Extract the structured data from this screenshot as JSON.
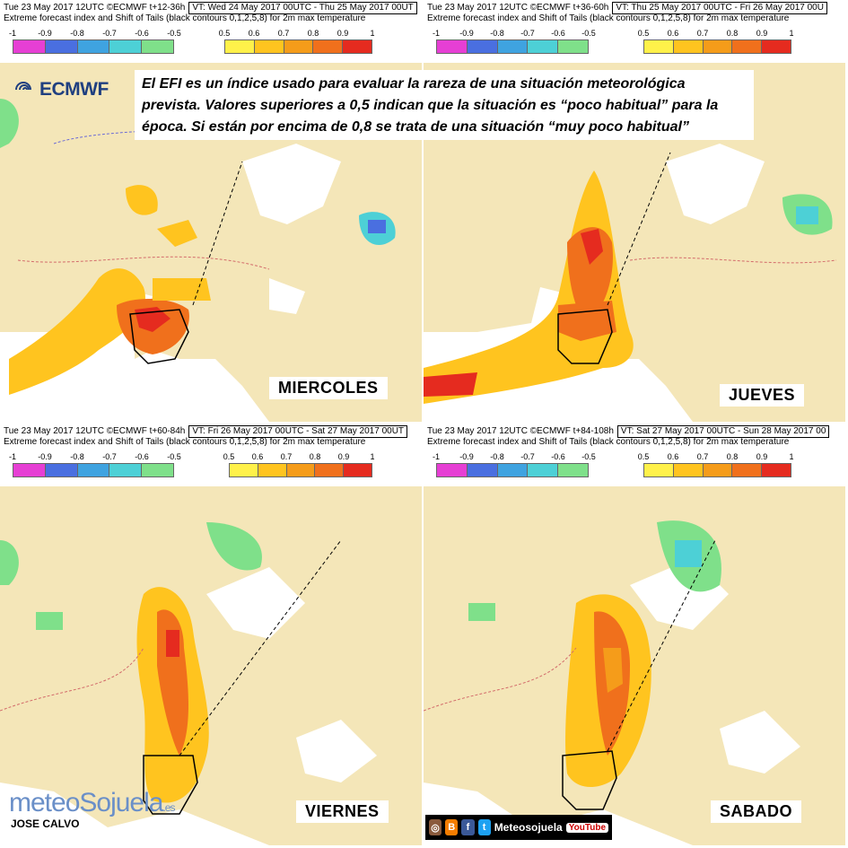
{
  "legend": {
    "neg_labels": [
      "-1",
      "-0.9",
      "-0.8",
      "-0.7",
      "-0.6",
      "-0.5"
    ],
    "neg_colors": [
      "#e63fd4",
      "#4a6fe0",
      "#3fa3e0",
      "#4dd0d6",
      "#7fe08a"
    ],
    "pos_labels": [
      "0.5",
      "0.6",
      "0.7",
      "0.8",
      "0.9",
      "1"
    ],
    "pos_colors": [
      "#fff14a",
      "#ffc41f",
      "#f59c1a",
      "#f0701c",
      "#e52b1f"
    ]
  },
  "panels": [
    {
      "header_run": "Tue 23 May 2017 12UTC ©ECMWF t+12-36h",
      "valid_time": "VT: Wed 24 May 2017 00UTC - Thu 25 May 2017 00UT",
      "subtitle": "Extreme forecast index and Shift of Tails (black contours 0,1,2,5,8) for 2m max temperature",
      "day": "MIERCOLES"
    },
    {
      "header_run": "Tue 23 May 2017 12UTC ©ECMWF t+36-60h",
      "valid_time": "VT: Thu 25 May 2017 00UTC - Fri 26 May 2017 00U",
      "subtitle": "Extreme forecast index and Shift of Tails (black contours 0,1,2,5,8) for 2m max temperature",
      "day": "JUEVES"
    },
    {
      "header_run": "Tue 23 May 2017 12UTC ©ECMWF t+60-84h",
      "valid_time": "VT: Fri 26 May 2017 00UTC - Sat 27 May 2017 00UT",
      "subtitle": "Extreme forecast index and Shift of Tails (black contours 0,1,2,5,8) for 2m max temperature",
      "day": "VIERNES"
    },
    {
      "header_run": "Tue 23 May 2017 12UTC ©ECMWF t+84-108h",
      "valid_time": "VT: Sat 27 May 2017 00UTC - Sun 28 May 2017 00",
      "subtitle": "Extreme forecast index and Shift of Tails (black contours 0,1,2,5,8) for 2m max temperature",
      "day": "SABADO"
    }
  ],
  "overlay": {
    "line1": "El EFI es un índice usado para evaluar la rareza de una situación meteorológica",
    "line2": "prevista. Valores superiores a 0,5 indican que la situación es “poco habitual” para la",
    "line3": "época. Si están por encima de 0,8 se trata de una situación “muy poco habitual”"
  },
  "logo_text": "ECMWF",
  "credit": "JOSE CALVO",
  "brand": {
    "part1": "meteo",
    "part2": "Sojuela",
    "suffix": ".es"
  },
  "social": {
    "handle": "Meteosojuela",
    "yt": "YouTube",
    "icons": [
      "instagram-icon",
      "blogger-icon",
      "facebook-icon",
      "twitter-icon"
    ]
  },
  "map_colors": {
    "land": "#f4e6b8",
    "sea": "#ffffff",
    "grid": "#cfcfcf",
    "contour_neg": "#6b6bd6",
    "contour_pos": "#d36b6b"
  }
}
